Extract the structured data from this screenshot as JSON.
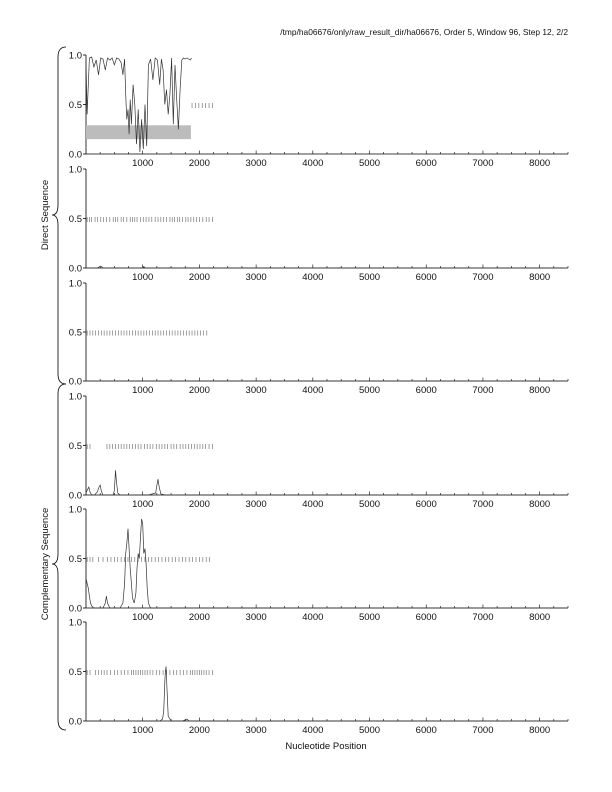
{
  "header": {
    "title": "/tmp/ha06676/only/raw_result_dir/ha06676, Order 5, Window 96, Step 12, 2/2"
  },
  "labels": {
    "xlabel": "Nucleotide Position",
    "direct_group": "Direct Sequence",
    "complementary_group": "Complementary Sequence"
  },
  "colors": {
    "line": "#333333",
    "axis": "#000000",
    "highlight_band": "#bcbcbc",
    "tick_marks": "#777777"
  },
  "chart_data": [
    {
      "type": "line",
      "group": "Direct Sequence",
      "panel": 1,
      "xlim": [
        0,
        8500
      ],
      "ylim": [
        0,
        1.0
      ],
      "xticks": [
        "1000",
        "2000",
        "3000",
        "4000",
        "5000",
        "6000",
        "7000",
        "8000"
      ],
      "yticks": [
        "0.0",
        "0.5",
        "1.0"
      ],
      "highlight_band": {
        "x": [
          0,
          1850
        ],
        "y": [
          0.15,
          0.29
        ]
      },
      "marker_row": {
        "y": 0.49,
        "x": [
          1870,
          1930,
          1990,
          2050,
          2110,
          2170,
          2230
        ]
      },
      "series": [
        {
          "x": [
            0,
            20,
            60,
            100,
            140,
            180,
            220,
            260,
            300,
            340,
            380,
            420,
            460,
            500,
            540,
            580,
            620,
            650,
            680,
            700,
            720,
            740,
            760,
            780,
            800,
            830,
            860,
            890,
            920,
            950,
            980,
            1010,
            1040,
            1070,
            1100,
            1140,
            1180,
            1220,
            1260,
            1300,
            1330,
            1360,
            1390,
            1420,
            1450,
            1480,
            1510,
            1540,
            1570,
            1600,
            1630,
            1660,
            1690,
            1720,
            1750,
            1780,
            1810,
            1840,
            1860
          ],
          "y": [
            0.95,
            0.4,
            0.97,
            0.98,
            0.88,
            0.95,
            0.8,
            0.97,
            0.96,
            0.85,
            0.97,
            0.95,
            0.97,
            0.9,
            0.97,
            0.96,
            0.92,
            0.8,
            0.96,
            0.6,
            0.35,
            0.45,
            0.2,
            0.55,
            0.3,
            0.7,
            0.5,
            0.1,
            0.45,
            0.02,
            0.35,
            0.05,
            0.5,
            0.08,
            0.9,
            0.96,
            0.75,
            0.97,
            0.95,
            0.7,
            0.96,
            0.85,
            0.5,
            0.65,
            0.4,
            0.6,
            0.97,
            0.3,
            0.9,
            0.55,
            0.25,
            0.65,
            0.95,
            0.97,
            0.96,
            0.97,
            0.96,
            0.95,
            0.97
          ]
        }
      ]
    },
    {
      "type": "line",
      "group": "Direct Sequence",
      "panel": 2,
      "xlim": [
        0,
        8500
      ],
      "ylim": [
        0,
        1.0
      ],
      "xticks": [
        "1000",
        "2000",
        "3000",
        "4000",
        "5000",
        "6000",
        "7000",
        "8000"
      ],
      "yticks": [
        "0.0",
        "0.5",
        "1.0"
      ],
      "marker_row": {
        "y": 0.49,
        "x": [
          20,
          60,
          100,
          160,
          200,
          260,
          310,
          360,
          420,
          480,
          520,
          560,
          620,
          660,
          720,
          780,
          820,
          860,
          900,
          960,
          1010,
          1060,
          1110,
          1160,
          1220,
          1270,
          1320,
          1370,
          1420,
          1480,
          1520,
          1560,
          1610,
          1650,
          1700,
          1760,
          1800,
          1850,
          1900,
          1950,
          2000,
          2060,
          2120,
          2170,
          2230
        ]
      },
      "series": [
        {
          "x": [
            0,
            100,
            200,
            260,
            280,
            300,
            400,
            1000,
            1020,
            1040,
            1060,
            1500,
            2000,
            8500
          ],
          "y": [
            0,
            0,
            0,
            0.02,
            0.01,
            0,
            0,
            0,
            0.015,
            0,
            0,
            0,
            0,
            0
          ]
        }
      ]
    },
    {
      "type": "line",
      "group": "Direct Sequence",
      "panel": 3,
      "xlim": [
        0,
        8500
      ],
      "ylim": [
        0,
        1.0
      ],
      "xticks": [
        "1000",
        "2000",
        "3000",
        "4000",
        "5000",
        "6000",
        "7000",
        "8000"
      ],
      "yticks": [
        "0.0",
        "0.5",
        "1.0"
      ],
      "marker_row": {
        "y": 0.49,
        "x": [
          20,
          70,
          120,
          170,
          220,
          270,
          320,
          370,
          420,
          470,
          520,
          570,
          620,
          670,
          720,
          770,
          820,
          870,
          920,
          970,
          1020,
          1070,
          1120,
          1170,
          1220,
          1270,
          1320,
          1370,
          1420,
          1470,
          1520,
          1570,
          1620,
          1670,
          1720,
          1770,
          1820,
          1870,
          1920,
          1970,
          2020,
          2070,
          2130
        ]
      },
      "series": [
        {
          "x": [
            0,
            8500
          ],
          "y": [
            0,
            0
          ]
        }
      ]
    },
    {
      "type": "line",
      "group": "Complementary Sequence",
      "panel": 4,
      "xlim": [
        0,
        8500
      ],
      "ylim": [
        0,
        1.0
      ],
      "xticks": [
        "1000",
        "2000",
        "3000",
        "4000",
        "5000",
        "6000",
        "7000",
        "8000"
      ],
      "yticks": [
        "0.0",
        "0.5",
        "1.0"
      ],
      "marker_row": {
        "y": 0.49,
        "x": [
          20,
          70,
          370,
          420,
          470,
          520,
          570,
          620,
          670,
          720,
          770,
          820,
          870,
          920,
          970,
          1030,
          1080,
          1130,
          1180,
          1240,
          1290,
          1340,
          1390,
          1440,
          1500,
          1550,
          1600,
          1660,
          1710,
          1760,
          1810,
          1860,
          1910,
          1960,
          2010,
          2060,
          2110,
          2170,
          2230
        ]
      },
      "series": [
        {
          "x": [
            0,
            30,
            50,
            70,
            100,
            150,
            200,
            230,
            250,
            270,
            300,
            400,
            480,
            500,
            520,
            540,
            560,
            600,
            700,
            900,
            1100,
            1230,
            1250,
            1270,
            1290,
            1320,
            1400,
            2000,
            8500
          ],
          "y": [
            0.02,
            0.06,
            0.08,
            0.03,
            0,
            0,
            0.03,
            0.08,
            0.1,
            0.04,
            0,
            0,
            0,
            0.05,
            0.25,
            0.12,
            0.02,
            0,
            0,
            0,
            0,
            0.02,
            0.1,
            0.16,
            0.08,
            0.01,
            0,
            0,
            0
          ]
        }
      ]
    },
    {
      "type": "line",
      "group": "Complementary Sequence",
      "panel": 5,
      "xlim": [
        0,
        8500
      ],
      "ylim": [
        0,
        1.0
      ],
      "xticks": [
        "1000",
        "2000",
        "3000",
        "4000",
        "5000",
        "6000",
        "7000",
        "8000"
      ],
      "yticks": [
        "0.0",
        "0.5",
        "1.0"
      ],
      "marker_row": {
        "y": 0.49,
        "x": [
          20,
          70,
          120,
          220,
          300,
          380,
          440,
          500,
          560,
          620,
          680,
          740,
          800,
          860,
          920,
          980,
          1040,
          1100,
          1160,
          1220,
          1280,
          1340,
          1400,
          1460,
          1520,
          1580,
          1640,
          1700,
          1760,
          1820,
          1880,
          1940,
          2000,
          2060,
          2120,
          2180
        ]
      },
      "series": [
        {
          "x": [
            0,
            20,
            40,
            60,
            80,
            100,
            140,
            200,
            300,
            340,
            360,
            380,
            420,
            600,
            650,
            680,
            700,
            720,
            740,
            760,
            780,
            800,
            820,
            850,
            880,
            900,
            920,
            940,
            960,
            980,
            1000,
            1020,
            1040,
            1060,
            1080,
            1100,
            1140,
            1300,
            2000,
            8500
          ],
          "y": [
            0.3,
            0.25,
            0.2,
            0.12,
            0.05,
            0.02,
            0,
            0,
            0,
            0.05,
            0.12,
            0.05,
            0,
            0,
            0.05,
            0.25,
            0.55,
            0.65,
            0.8,
            0.6,
            0.4,
            0.25,
            0.1,
            0.05,
            0.15,
            0.4,
            0.55,
            0.5,
            0.7,
            0.9,
            0.85,
            0.55,
            0.6,
            0.45,
            0.2,
            0.05,
            0,
            0,
            0,
            0
          ]
        }
      ]
    },
    {
      "type": "line",
      "group": "Complementary Sequence",
      "panel": 6,
      "xlim": [
        0,
        8500
      ],
      "ylim": [
        0,
        1.0
      ],
      "xticks": [
        "1000",
        "2000",
        "3000",
        "4000",
        "5000",
        "6000",
        "7000",
        "8000"
      ],
      "yticks": [
        "0.0",
        "0.5",
        "1.0"
      ],
      "marker_row": {
        "y": 0.49,
        "x": [
          20,
          70,
          170,
          220,
          270,
          320,
          370,
          430,
          500,
          560,
          620,
          680,
          740,
          800,
          840,
          880,
          920,
          960,
          1000,
          1040,
          1080,
          1130,
          1180,
          1240,
          1300,
          1360,
          1420,
          1480,
          1540,
          1600,
          1660,
          1720,
          1780,
          1840,
          1880,
          1920,
          1960,
          2000,
          2040,
          2080,
          2120,
          2170,
          2230
        ]
      },
      "series": [
        {
          "x": [
            0,
            1000,
            1300,
            1350,
            1370,
            1380,
            1390,
            1400,
            1410,
            1430,
            1450,
            1500,
            1700,
            1750,
            1780,
            1820,
            1900,
            2000,
            8500
          ],
          "y": [
            0,
            0,
            0,
            0.02,
            0.1,
            0.25,
            0.4,
            0.5,
            0.55,
            0.3,
            0.05,
            0,
            0,
            0.01,
            0.02,
            0,
            0,
            0,
            0
          ]
        }
      ]
    }
  ]
}
